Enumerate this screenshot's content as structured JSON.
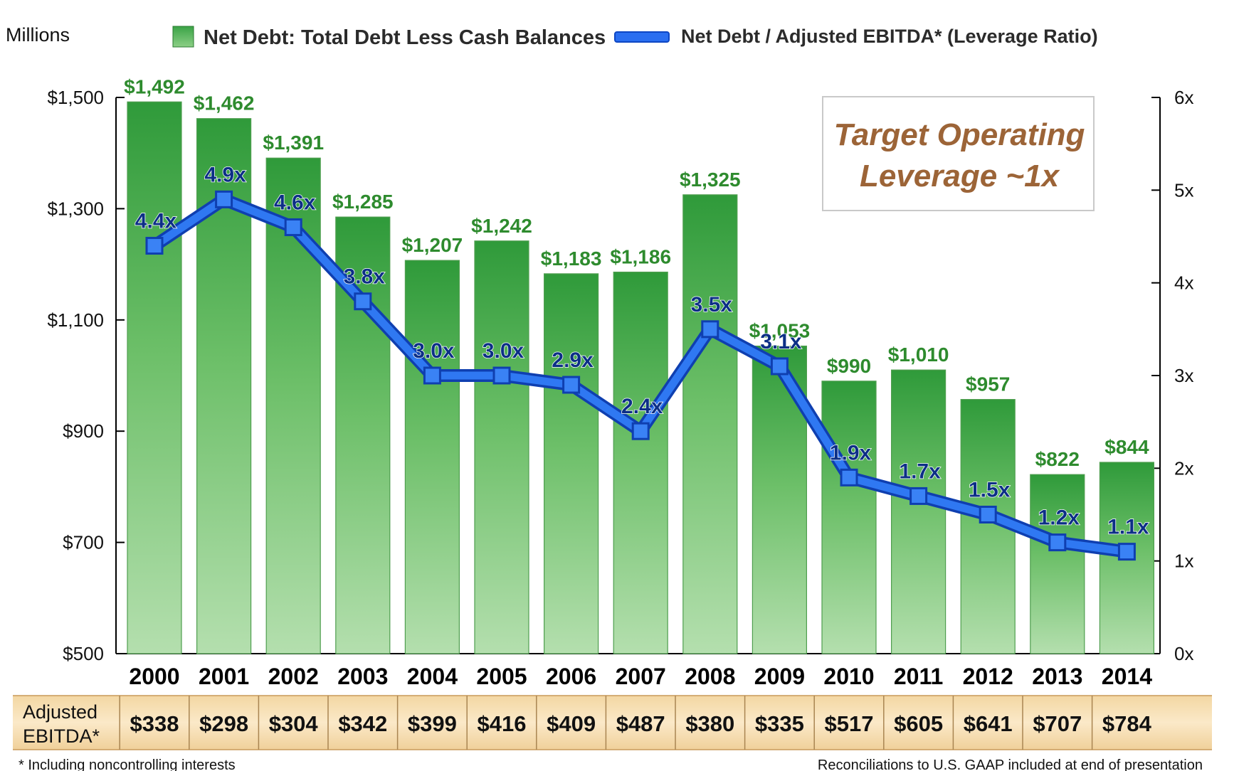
{
  "units_label": "Millions",
  "legend": {
    "bar_label": "Net Debt: Total Debt Less Cash Balances",
    "line_label": "Net Debt / Adjusted EBITDA* (Leverage Ratio)"
  },
  "target_box": {
    "line1": "Target Operating",
    "line2": "Leverage ~1x"
  },
  "ebitda_row": {
    "label_line1": "Adjusted",
    "label_line2": "EBITDA*",
    "values": [
      "$338",
      "$298",
      "$304",
      "$342",
      "$399",
      "$416",
      "$409",
      "$487",
      "$380",
      "$335",
      "$517",
      "$605",
      "$641",
      "$707",
      "$784"
    ]
  },
  "footnote_left": "* Including noncontrolling interests",
  "footnote_right": "Reconciliations to U.S. GAAP included at end of presentation",
  "colors": {
    "bar_top": "#2f9a3a",
    "bar_bottom": "#a9d9a4",
    "line": "#2a6ef0",
    "bar_label": "#2e8b2e",
    "ratio_label": "#0c2f86",
    "target_text": "#9c6437",
    "ebitda_bg": "#f5deb0"
  },
  "chart_data": {
    "type": "bar",
    "categories": [
      "2000",
      "2001",
      "2002",
      "2003",
      "2004",
      "2005",
      "2006",
      "2007",
      "2008",
      "2009",
      "2010",
      "2011",
      "2012",
      "2013",
      "2014"
    ],
    "series": [
      {
        "name": "Net Debt: Total Debt Less Cash Balances",
        "type": "bar",
        "axis": "left",
        "values": [
          1492,
          1462,
          1391,
          1285,
          1207,
          1242,
          1183,
          1186,
          1325,
          1053,
          990,
          1010,
          957,
          822,
          844
        ],
        "labels": [
          "$1,492",
          "$1,462",
          "$1,391",
          "$1,285",
          "$1,207",
          "$1,242",
          "$1,183",
          "$1,186",
          "$1,325",
          "$1,053",
          "$990",
          "$1,010",
          "$957",
          "$822",
          "$844"
        ]
      },
      {
        "name": "Net Debt / Adjusted EBITDA* (Leverage Ratio)",
        "type": "line",
        "axis": "right",
        "values": [
          4.4,
          4.9,
          4.6,
          3.8,
          3.0,
          3.0,
          2.9,
          2.4,
          3.5,
          3.1,
          1.9,
          1.7,
          1.5,
          1.2,
          1.1
        ],
        "labels": [
          "4.4x",
          "4.9x",
          "4.6x",
          "3.8x",
          "3.0x",
          "3.0x",
          "2.9x",
          "2.4x",
          "3.5x",
          "3.1x",
          "1.9x",
          "1.7x",
          "1.5x",
          "1.2x",
          "1.1x"
        ]
      }
    ],
    "left_axis": {
      "ylim": [
        500,
        1500
      ],
      "ticks": [
        500,
        700,
        900,
        1100,
        1300,
        1500
      ],
      "tick_labels": [
        "$500",
        "$700",
        "$900",
        "$1,100",
        "$1,300",
        "$1,500"
      ]
    },
    "right_axis": {
      "ylim": [
        0,
        6
      ],
      "ticks": [
        0,
        1,
        2,
        3,
        4,
        5,
        6
      ],
      "tick_labels": [
        "0x",
        "1x",
        "2x",
        "3x",
        "4x",
        "5x",
        "6x"
      ]
    },
    "legend_position": "top",
    "grid": false
  }
}
